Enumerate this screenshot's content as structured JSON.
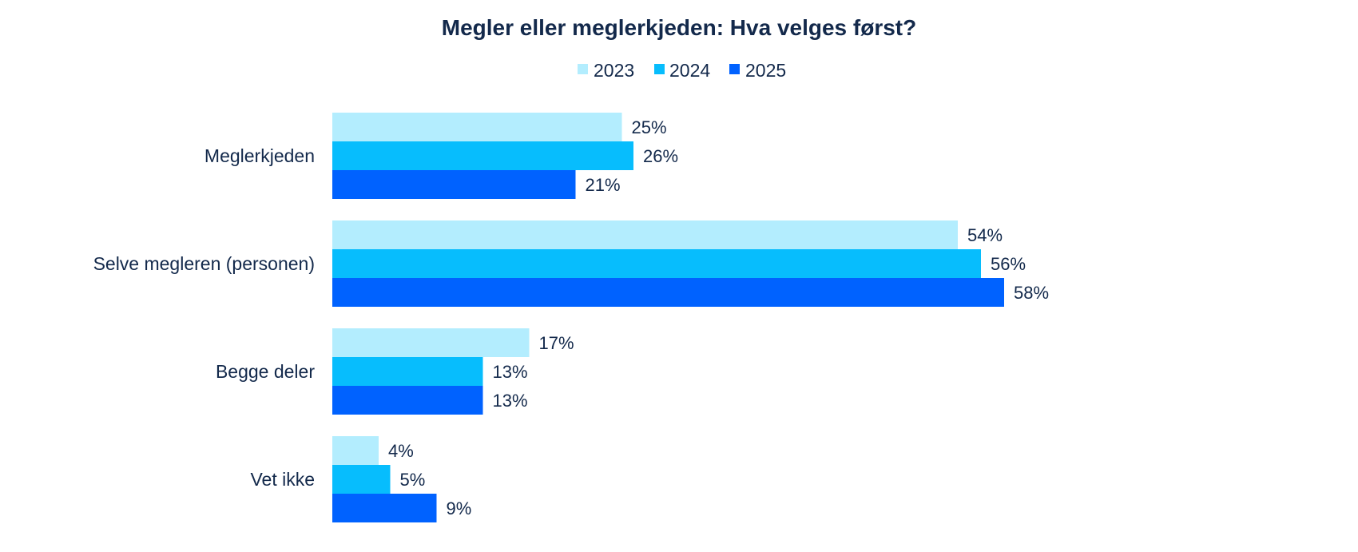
{
  "chart_data": {
    "type": "bar",
    "orientation": "horizontal",
    "title": "Megler eller meglerkjeden: Hva velges først?",
    "categories": [
      "Meglerkjeden",
      "Selve megleren (personen)",
      "Begge deler",
      "Vet ikke"
    ],
    "series": [
      {
        "name": "2023",
        "color": "#b3edfe",
        "values": [
          25,
          54,
          17,
          4
        ],
        "labels": [
          "25%",
          "54%",
          "17%",
          "4%"
        ]
      },
      {
        "name": "2024",
        "color": "#07bdfd",
        "values": [
          26,
          56,
          13,
          5
        ],
        "labels": [
          "26%",
          "56%",
          "13%",
          "5%"
        ]
      },
      {
        "name": "2025",
        "color": "#0062ff",
        "values": [
          21,
          58,
          13,
          9
        ],
        "labels": [
          "21%",
          "58%",
          "13%",
          "9%"
        ]
      }
    ],
    "value_unit": "%",
    "legend_position": "top-center",
    "grid": false,
    "xlim": [
      0,
      60
    ]
  }
}
